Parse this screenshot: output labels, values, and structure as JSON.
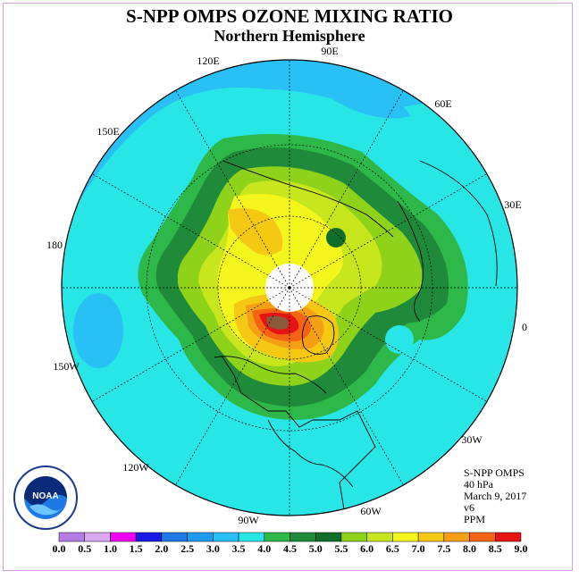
{
  "title": "S-NPP OMPS OZONE MIXING RATIO",
  "subtitle": "Northern Hemisphere",
  "longitude_labels": {
    "e90": "90E",
    "e60": "60E",
    "e30": "30E",
    "zero": "0",
    "w30": "30W",
    "w60": "60W",
    "w90": "90W",
    "w120": "120W",
    "w150": "150W",
    "d180": "180",
    "e150": "150E",
    "e120": "120E"
  },
  "info": {
    "instrument": "S-NPP OMPS",
    "level": "40 hPa",
    "date": "March 9, 2017",
    "version": "v6",
    "units": "PPM"
  },
  "logo_text": "NOAA",
  "colorbar": {
    "labels": [
      "0.0",
      "0.5",
      "1.0",
      "1.5",
      "2.0",
      "2.5",
      "3.0",
      "3.5",
      "4.0",
      "4.5",
      "5.0",
      "5.5",
      "6.0",
      "6.5",
      "7.0",
      "7.5",
      "8.0",
      "8.5",
      "9.0"
    ],
    "colors": [
      "#b57ce6",
      "#d8a8f0",
      "#f000f0",
      "#1a1ae6",
      "#1e78e6",
      "#1e9bf0",
      "#28c0f5",
      "#28e6e6",
      "#2eb84a",
      "#1f8a3a",
      "#0f6e2a",
      "#8fd21a",
      "#c8e61e",
      "#f5f51e",
      "#f5c814",
      "#f5a014",
      "#f56414",
      "#e61414",
      "#8b5a3c"
    ]
  },
  "colors": {
    "ocean_low": "#28c0f5",
    "mid": "#28e6e6",
    "high": "#f56414",
    "peak": "#e61414"
  }
}
